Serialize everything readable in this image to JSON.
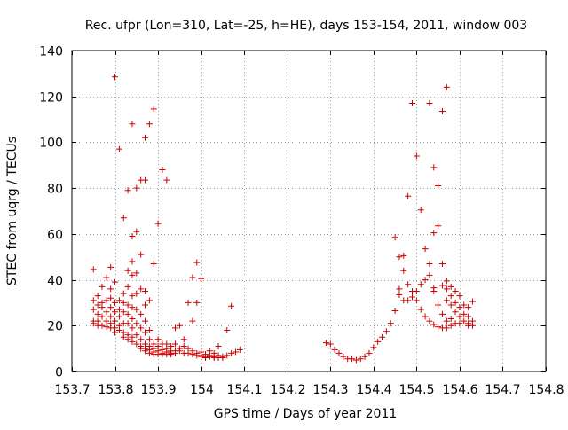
{
  "chart_data": {
    "type": "scatter",
    "title": "Rec. ufpr (Lon=310, Lat=-25, h=HE), days 153-154, 2011, window 003",
    "xlabel": "GPS time / Days of year 2011",
    "ylabel": "STEC from uqrg / TECUs",
    "xlim": [
      153.7,
      154.8
    ],
    "ylim": [
      0,
      140
    ],
    "x_ticks": [
      "153.7",
      "153.8",
      "153.9",
      "154",
      "154.1",
      "154.2",
      "154.3",
      "154.4",
      "154.5",
      "154.6",
      "154.7",
      "154.8"
    ],
    "y_ticks": [
      "0",
      "20",
      "40",
      "60",
      "80",
      "100",
      "120",
      "140"
    ],
    "grid": true,
    "marker": "+",
    "color": "#cc0000",
    "series": [
      {
        "points": [
          [
            153.75,
            44.5
          ],
          [
            153.75,
            31
          ],
          [
            153.75,
            27
          ],
          [
            153.75,
            22
          ],
          [
            153.75,
            21
          ],
          [
            153.76,
            33
          ],
          [
            153.76,
            29
          ],
          [
            153.76,
            25
          ],
          [
            153.76,
            22
          ],
          [
            153.76,
            20
          ],
          [
            153.77,
            37
          ],
          [
            153.77,
            30
          ],
          [
            153.77,
            28
          ],
          [
            153.77,
            24
          ],
          [
            153.77,
            20
          ],
          [
            153.78,
            41
          ],
          [
            153.78,
            31
          ],
          [
            153.78,
            26
          ],
          [
            153.78,
            22
          ],
          [
            153.78,
            19.5
          ],
          [
            153.79,
            45.5
          ],
          [
            153.79,
            36
          ],
          [
            153.79,
            32
          ],
          [
            153.79,
            28
          ],
          [
            153.79,
            24
          ],
          [
            153.79,
            21
          ],
          [
            153.79,
            19
          ],
          [
            153.8,
            128.5
          ],
          [
            153.8,
            39
          ],
          [
            153.8,
            30
          ],
          [
            153.8,
            26
          ],
          [
            153.8,
            22
          ],
          [
            153.8,
            19
          ],
          [
            153.8,
            17
          ],
          [
            153.81,
            97
          ],
          [
            153.81,
            31
          ],
          [
            153.81,
            27
          ],
          [
            153.81,
            24
          ],
          [
            153.81,
            20
          ],
          [
            153.81,
            18
          ],
          [
            153.82,
            67
          ],
          [
            153.82,
            34
          ],
          [
            153.82,
            30
          ],
          [
            153.82,
            26
          ],
          [
            153.82,
            21
          ],
          [
            153.82,
            17
          ],
          [
            153.82,
            15
          ],
          [
            153.83,
            79
          ],
          [
            153.83,
            44
          ],
          [
            153.83,
            37
          ],
          [
            153.83,
            29
          ],
          [
            153.83,
            25
          ],
          [
            153.83,
            21
          ],
          [
            153.83,
            16
          ],
          [
            153.83,
            14
          ],
          [
            153.84,
            108
          ],
          [
            153.84,
            59
          ],
          [
            153.84,
            48
          ],
          [
            153.84,
            42
          ],
          [
            153.84,
            33
          ],
          [
            153.84,
            28
          ],
          [
            153.84,
            23
          ],
          [
            153.84,
            19
          ],
          [
            153.84,
            15
          ],
          [
            153.84,
            13
          ],
          [
            153.85,
            80
          ],
          [
            153.85,
            61
          ],
          [
            153.85,
            43
          ],
          [
            153.85,
            34
          ],
          [
            153.85,
            27
          ],
          [
            153.85,
            21
          ],
          [
            153.85,
            16
          ],
          [
            153.85,
            12
          ],
          [
            153.86,
            83.5
          ],
          [
            153.86,
            51
          ],
          [
            153.86,
            36
          ],
          [
            153.86,
            25
          ],
          [
            153.86,
            19
          ],
          [
            153.86,
            14
          ],
          [
            153.86,
            11
          ],
          [
            153.86,
            10
          ],
          [
            153.87,
            102
          ],
          [
            153.87,
            83.5
          ],
          [
            153.87,
            35
          ],
          [
            153.87,
            29
          ],
          [
            153.87,
            22
          ],
          [
            153.87,
            17
          ],
          [
            153.87,
            12
          ],
          [
            153.87,
            10
          ],
          [
            153.87,
            9
          ],
          [
            153.88,
            108
          ],
          [
            153.88,
            31
          ],
          [
            153.88,
            18
          ],
          [
            153.88,
            14
          ],
          [
            153.88,
            11
          ],
          [
            153.88,
            9.5
          ],
          [
            153.88,
            8
          ],
          [
            153.89,
            114.5
          ],
          [
            153.89,
            47
          ],
          [
            153.89,
            12
          ],
          [
            153.89,
            10
          ],
          [
            153.89,
            8.5
          ],
          [
            153.89,
            7.5
          ],
          [
            153.9,
            64.5
          ],
          [
            153.9,
            14
          ],
          [
            153.9,
            11
          ],
          [
            153.9,
            9
          ],
          [
            153.9,
            7.5
          ],
          [
            153.91,
            88
          ],
          [
            153.91,
            12
          ],
          [
            153.91,
            9.5
          ],
          [
            153.91,
            8
          ],
          [
            153.91,
            7.5
          ],
          [
            153.92,
            83.5
          ],
          [
            153.92,
            12
          ],
          [
            153.92,
            10
          ],
          [
            153.92,
            8.5
          ],
          [
            153.92,
            7.5
          ],
          [
            153.93,
            11
          ],
          [
            153.93,
            9
          ],
          [
            153.93,
            8
          ],
          [
            153.93,
            7.5
          ],
          [
            153.94,
            19
          ],
          [
            153.94,
            12
          ],
          [
            153.94,
            9
          ],
          [
            153.94,
            8
          ],
          [
            153.95,
            20
          ],
          [
            153.95,
            10
          ],
          [
            153.95,
            9
          ],
          [
            153.96,
            14
          ],
          [
            153.96,
            11
          ],
          [
            153.96,
            8
          ],
          [
            153.97,
            30
          ],
          [
            153.97,
            10
          ],
          [
            153.97,
            8
          ],
          [
            153.98,
            41
          ],
          [
            153.98,
            22
          ],
          [
            153.98,
            9
          ],
          [
            153.98,
            7.5
          ],
          [
            153.99,
            47.5
          ],
          [
            153.99,
            30
          ],
          [
            153.99,
            8
          ],
          [
            153.99,
            7
          ],
          [
            154.0,
            40.5
          ],
          [
            154.0,
            8.5
          ],
          [
            154.0,
            7
          ],
          [
            154.0,
            6.5
          ],
          [
            154.01,
            7.5
          ],
          [
            154.01,
            6.5
          ],
          [
            154.01,
            6
          ],
          [
            154.02,
            9
          ],
          [
            154.02,
            7
          ],
          [
            154.02,
            6.5
          ],
          [
            154.03,
            8
          ],
          [
            154.03,
            6.5
          ],
          [
            154.03,
            6
          ],
          [
            154.04,
            11
          ],
          [
            154.04,
            7
          ],
          [
            154.04,
            6
          ],
          [
            154.05,
            6.5
          ],
          [
            154.05,
            6
          ],
          [
            154.06,
            18
          ],
          [
            154.06,
            7
          ],
          [
            154.07,
            28.5
          ],
          [
            154.07,
            8
          ],
          [
            154.08,
            8.5
          ],
          [
            154.09,
            9.5
          ],
          [
            154.29,
            12.5
          ],
          [
            154.3,
            12
          ],
          [
            154.31,
            9.5
          ],
          [
            154.32,
            8
          ],
          [
            154.33,
            6.5
          ],
          [
            154.34,
            5.5
          ],
          [
            154.35,
            5.5
          ],
          [
            154.36,
            5
          ],
          [
            154.37,
            5.5
          ],
          [
            154.38,
            6.5
          ],
          [
            154.39,
            8
          ],
          [
            154.4,
            10.5
          ],
          [
            154.41,
            13
          ],
          [
            154.42,
            15
          ],
          [
            154.43,
            17.5
          ],
          [
            154.44,
            21
          ],
          [
            154.45,
            26.5
          ],
          [
            154.45,
            58.5
          ],
          [
            154.46,
            50
          ],
          [
            154.46,
            36
          ],
          [
            154.46,
            33.5
          ],
          [
            154.47,
            50.5
          ],
          [
            154.47,
            44
          ],
          [
            154.47,
            31
          ],
          [
            154.48,
            76.5
          ],
          [
            154.48,
            38
          ],
          [
            154.48,
            31
          ],
          [
            154.49,
            117
          ],
          [
            154.49,
            35
          ],
          [
            154.49,
            32.5
          ],
          [
            154.5,
            94
          ],
          [
            154.5,
            35
          ],
          [
            154.5,
            31
          ],
          [
            154.51,
            70.5
          ],
          [
            154.51,
            38
          ],
          [
            154.51,
            27
          ],
          [
            154.52,
            53.5
          ],
          [
            154.52,
            40
          ],
          [
            154.52,
            24
          ],
          [
            154.53,
            117
          ],
          [
            154.53,
            47
          ],
          [
            154.53,
            42
          ],
          [
            154.53,
            22
          ],
          [
            154.54,
            89
          ],
          [
            154.54,
            60.5
          ],
          [
            154.54,
            36.5
          ],
          [
            154.54,
            35
          ],
          [
            154.54,
            20.5
          ],
          [
            154.55,
            81
          ],
          [
            154.55,
            63.5
          ],
          [
            154.55,
            29
          ],
          [
            154.55,
            19.5
          ],
          [
            154.56,
            113.5
          ],
          [
            154.56,
            47
          ],
          [
            154.56,
            37.5
          ],
          [
            154.56,
            25
          ],
          [
            154.56,
            19
          ],
          [
            154.57,
            124
          ],
          [
            154.57,
            39.5
          ],
          [
            154.57,
            36
          ],
          [
            154.57,
            31
          ],
          [
            154.57,
            22
          ],
          [
            154.57,
            19
          ],
          [
            154.58,
            37
          ],
          [
            154.58,
            33
          ],
          [
            154.58,
            29
          ],
          [
            154.58,
            23
          ],
          [
            154.58,
            20
          ],
          [
            154.59,
            35
          ],
          [
            154.59,
            30
          ],
          [
            154.59,
            26
          ],
          [
            154.59,
            21
          ],
          [
            154.6,
            33
          ],
          [
            154.6,
            28
          ],
          [
            154.6,
            24
          ],
          [
            154.6,
            21
          ],
          [
            154.61,
            29
          ],
          [
            154.61,
            25
          ],
          [
            154.61,
            22
          ],
          [
            154.62,
            28
          ],
          [
            154.62,
            24
          ],
          [
            154.62,
            21
          ],
          [
            154.62,
            20
          ],
          [
            154.63,
            30.5
          ],
          [
            154.63,
            22
          ],
          [
            154.63,
            20
          ]
        ]
      }
    ]
  }
}
